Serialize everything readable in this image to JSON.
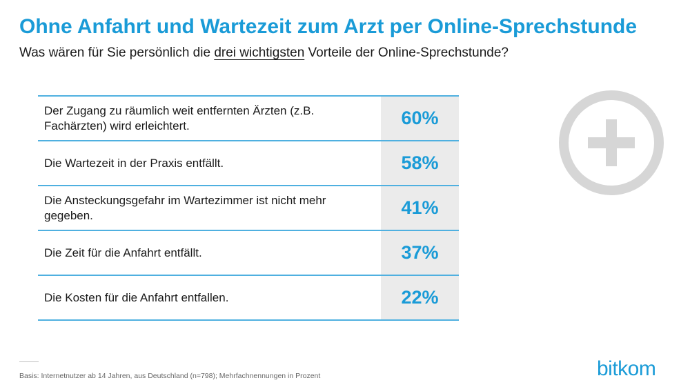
{
  "title": "Ohne Anfahrt und Wartezeit zum Arzt per Online-Sprechstunde",
  "subtitle": {
    "before": "Was wären für Sie persönlich die ",
    "underlined": "drei wichtigsten",
    "after": " Vorteile der Online-Sprechstunde?"
  },
  "chart_data": {
    "type": "table",
    "categories": [
      "Der Zugang zu räumlich weit entfernten Ärzten (z.B. Fachärzten) wird erleichtert.",
      "Die Wartezeit in der Praxis entfällt.",
      "Die Ansteckungsgefahr im Wartezimmer ist nicht mehr gegeben.",
      "Die Zeit für die Anfahrt entfällt.",
      "Die Kosten für die Anfahrt entfallen."
    ],
    "values": [
      60,
      58,
      41,
      37,
      22
    ],
    "value_labels": [
      "60%",
      "58%",
      "41%",
      "37%",
      "22%"
    ],
    "unit": "%"
  },
  "icon": "plus-circle-icon",
  "footnote": "Basis: Internetnutzer ab 14 Jahren, aus Deutschland (n=798); Mehrfachnennungen  in Prozent",
  "logo": "bitkom",
  "colors": {
    "accent": "#1a9bd7",
    "table_line": "#4fb0e0",
    "value_bg": "#ebebeb",
    "icon_gray": "#d6d6d6"
  }
}
